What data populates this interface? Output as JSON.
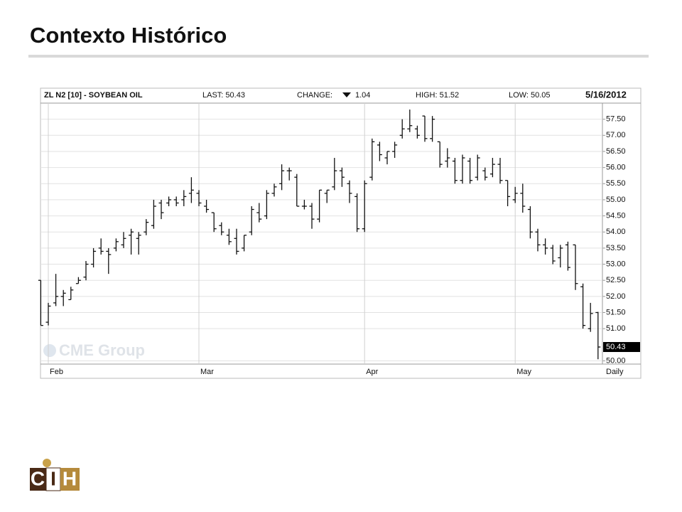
{
  "slide_title": "Contexto Histórico",
  "logo": {
    "letters": [
      "C",
      "I",
      "H"
    ]
  },
  "chart_data": {
    "type": "ohlc",
    "title": "ZL N2 [10] - SOYBEAN OIL",
    "header": {
      "last": "LAST: 50.43",
      "change_label": "CHANGE:",
      "change": "1.04",
      "high": "HIGH: 51.52",
      "low": "LOW: 50.05",
      "date": "5/16/2012"
    },
    "last_price_label": "50.43",
    "period": "Daily",
    "watermark": "CME Group",
    "color": "#111111",
    "grid": true,
    "categories": [
      null,
      "Feb",
      null,
      null,
      null,
      null,
      null,
      null,
      null,
      null,
      null,
      null,
      null,
      null,
      null,
      null,
      null,
      null,
      null,
      null,
      null,
      "Mar",
      null,
      null,
      null,
      null,
      null,
      null,
      null,
      null,
      null,
      null,
      null,
      null,
      null,
      null,
      null,
      null,
      null,
      null,
      null,
      null,
      null,
      "Apr",
      null,
      null,
      null,
      null,
      null,
      null,
      null,
      null,
      null,
      null,
      null,
      null,
      null,
      null,
      null,
      null,
      null,
      null,
      null,
      "May",
      null,
      null,
      null,
      null,
      null,
      null,
      null,
      null,
      null,
      null,
      null
    ],
    "open": [
      52.5,
      51.2,
      51.8,
      52.0,
      51.9,
      52.4,
      52.6,
      53.0,
      53.5,
      53.4,
      53.5,
      53.6,
      53.9,
      53.8,
      54.0,
      54.2,
      54.9,
      54.9,
      55.0,
      55.0,
      55.2,
      55.2,
      54.8,
      54.6,
      54.2,
      53.9,
      53.8,
      53.5,
      54.0,
      54.6,
      54.5,
      55.2,
      55.5,
      55.9,
      55.7,
      54.8,
      54.8,
      54.4,
      55.2,
      55.4,
      55.9,
      55.5,
      55.1,
      54.1,
      55.7,
      56.7,
      56.3,
      56.5,
      57.0,
      57.2,
      57.2,
      57.6,
      56.9,
      56.8,
      56.2,
      56.2,
      55.6,
      56.2,
      55.7,
      55.9,
      55.8,
      56.1,
      55.6,
      55.0,
      55.2,
      54.7,
      54.0,
      53.6,
      53.5,
      53.2,
      53.6,
      53.6,
      52.3,
      51.0,
      51.5
    ],
    "high": [
      52.5,
      51.8,
      52.7,
      52.2,
      52.3,
      52.6,
      53.1,
      53.5,
      53.8,
      53.5,
      53.8,
      54.0,
      54.1,
      54.0,
      54.4,
      55.0,
      55.0,
      55.1,
      55.1,
      55.3,
      55.7,
      55.3,
      55.0,
      54.6,
      54.3,
      54.1,
      54.1,
      53.9,
      54.8,
      54.9,
      55.3,
      55.5,
      56.1,
      56.0,
      55.8,
      55.0,
      54.9,
      55.3,
      55.3,
      56.3,
      56.0,
      55.6,
      55.2,
      55.6,
      56.9,
      56.8,
      56.5,
      56.8,
      57.5,
      57.8,
      57.3,
      57.6,
      57.6,
      56.8,
      56.6,
      56.3,
      56.4,
      56.3,
      56.4,
      56.0,
      56.3,
      56.3,
      55.6,
      55.4,
      55.5,
      54.8,
      54.1,
      53.8,
      53.6,
      53.6,
      53.7,
      53.6,
      52.4,
      51.8,
      51.52
    ],
    "low": [
      51.1,
      51.1,
      51.7,
      51.7,
      51.9,
      52.4,
      52.5,
      52.9,
      53.3,
      52.7,
      53.4,
      53.5,
      53.3,
      53.3,
      53.9,
      54.1,
      54.4,
      54.8,
      54.8,
      54.8,
      54.9,
      54.8,
      54.6,
      54.0,
      53.9,
      53.6,
      53.3,
      53.4,
      53.9,
      54.3,
      54.4,
      55.1,
      55.3,
      55.6,
      54.8,
      54.7,
      54.1,
      54.3,
      54.9,
      55.3,
      55.4,
      54.9,
      54.0,
      54.0,
      55.6,
      56.2,
      56.1,
      56.3,
      56.9,
      57.1,
      56.9,
      56.8,
      56.8,
      56.0,
      56.0,
      55.5,
      55.5,
      55.5,
      55.6,
      55.6,
      55.7,
      55.5,
      54.8,
      54.9,
      54.6,
      53.8,
      53.4,
      53.3,
      53.0,
      52.9,
      52.8,
      52.2,
      51.0,
      50.9,
      50.05
    ],
    "close": [
      51.1,
      51.7,
      52.0,
      52.1,
      52.2,
      52.5,
      53.0,
      53.4,
      53.4,
      53.3,
      53.7,
      53.8,
      54.0,
      53.9,
      54.3,
      54.8,
      54.6,
      55.0,
      54.9,
      55.1,
      55.3,
      54.9,
      54.7,
      54.1,
      54.0,
      53.7,
      53.4,
      53.9,
      54.7,
      54.4,
      55.2,
      55.4,
      55.9,
      55.9,
      54.8,
      54.8,
      54.4,
      55.3,
      55.3,
      55.9,
      55.7,
      55.2,
      54.1,
      55.5,
      56.8,
      56.4,
      56.5,
      56.7,
      57.2,
      57.3,
      57.0,
      56.9,
      57.5,
      56.1,
      56.3,
      55.6,
      56.3,
      55.6,
      56.3,
      55.7,
      56.1,
      55.6,
      55.1,
      55.2,
      54.8,
      54.0,
      53.6,
      53.5,
      53.1,
      53.5,
      52.9,
      52.4,
      51.1,
      51.47,
      50.43
    ],
    "ylim": [
      49.9,
      58.0
    ],
    "yticks": [
      {
        "value": 50,
        "label": "50.00"
      },
      {
        "value": 51,
        "label": "51.00"
      },
      {
        "value": 51.5,
        "label": "51.50"
      },
      {
        "value": 52,
        "label": "52.00"
      },
      {
        "value": 52.5,
        "label": "52.50"
      },
      {
        "value": 53,
        "label": "53.00"
      },
      {
        "value": 53.5,
        "label": "53.50"
      },
      {
        "value": 54,
        "label": "54.00"
      },
      {
        "value": 54.5,
        "label": "54.50"
      },
      {
        "value": 55,
        "label": "55.00"
      },
      {
        "value": 55.5,
        "label": "55.50"
      },
      {
        "value": 56,
        "label": "56.00"
      },
      {
        "value": 56.5,
        "label": "56.50"
      },
      {
        "value": 57,
        "label": "57.00"
      },
      {
        "value": 57.5,
        "label": "57.50"
      }
    ]
  }
}
